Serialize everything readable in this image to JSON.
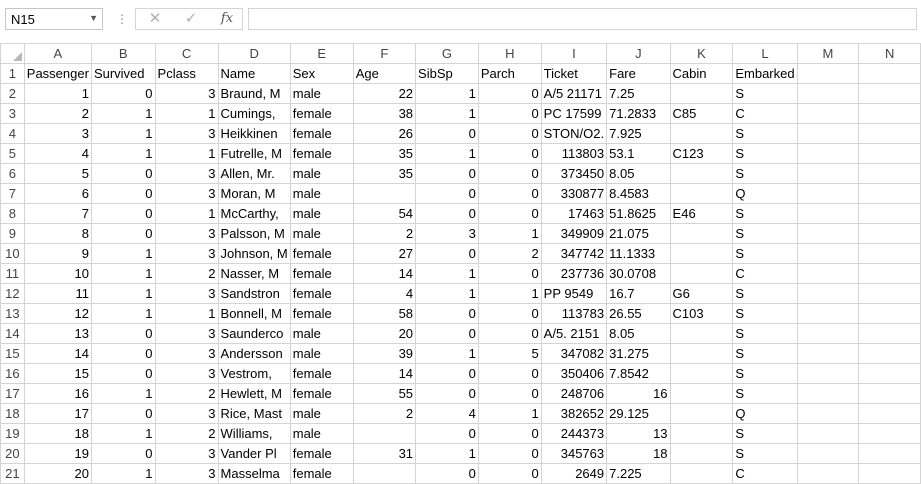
{
  "formula_bar": {
    "name_box": "N15",
    "cancel_icon": "✕",
    "enter_icon": "✓",
    "fx_label": "fx",
    "formula": ""
  },
  "columns": [
    "A",
    "B",
    "C",
    "D",
    "E",
    "F",
    "G",
    "H",
    "I",
    "J",
    "K",
    "L",
    "M",
    "N"
  ],
  "rows": [
    {
      "n": "1",
      "cells": [
        [
          "Passenger",
          "t"
        ],
        [
          "Survived",
          "t"
        ],
        [
          "Pclass",
          "t"
        ],
        [
          "Name",
          "t"
        ],
        [
          "Sex",
          "t"
        ],
        [
          "Age",
          "t"
        ],
        [
          "SibSp",
          "t"
        ],
        [
          "Parch",
          "t"
        ],
        [
          "Ticket",
          "t"
        ],
        [
          "Fare",
          "t"
        ],
        [
          "Cabin",
          "t"
        ],
        [
          "Embarked",
          "t"
        ],
        [
          "",
          ""
        ],
        [
          "",
          ""
        ]
      ]
    },
    {
      "n": "2",
      "cells": [
        [
          "1",
          "n"
        ],
        [
          "0",
          "n"
        ],
        [
          "3",
          "n"
        ],
        [
          "Braund, M",
          "t"
        ],
        [
          "male",
          "t"
        ],
        [
          "22",
          "n"
        ],
        [
          "1",
          "n"
        ],
        [
          "0",
          "n"
        ],
        [
          "A/5 21171",
          "t"
        ],
        [
          "7.25",
          "t"
        ],
        [
          "",
          ""
        ],
        [
          "S",
          "t"
        ],
        [
          "",
          ""
        ],
        [
          "",
          ""
        ]
      ]
    },
    {
      "n": "3",
      "cells": [
        [
          "2",
          "n"
        ],
        [
          "1",
          "n"
        ],
        [
          "1",
          "n"
        ],
        [
          "Cumings,",
          "t"
        ],
        [
          "female",
          "t"
        ],
        [
          "38",
          "n"
        ],
        [
          "1",
          "n"
        ],
        [
          "0",
          "n"
        ],
        [
          "PC 17599",
          "t"
        ],
        [
          "71.2833",
          "t"
        ],
        [
          "C85",
          "t"
        ],
        [
          "C",
          "t"
        ],
        [
          "",
          ""
        ],
        [
          "",
          ""
        ]
      ]
    },
    {
      "n": "4",
      "cells": [
        [
          "3",
          "n"
        ],
        [
          "1",
          "n"
        ],
        [
          "3",
          "n"
        ],
        [
          "Heikkinen",
          "t"
        ],
        [
          "female",
          "t"
        ],
        [
          "26",
          "n"
        ],
        [
          "0",
          "n"
        ],
        [
          "0",
          "n"
        ],
        [
          "STON/O2.",
          "t"
        ],
        [
          "7.925",
          "t"
        ],
        [
          "",
          ""
        ],
        [
          "S",
          "t"
        ],
        [
          "",
          ""
        ],
        [
          "",
          ""
        ]
      ]
    },
    {
      "n": "5",
      "cells": [
        [
          "4",
          "n"
        ],
        [
          "1",
          "n"
        ],
        [
          "1",
          "n"
        ],
        [
          "Futrelle, M",
          "t"
        ],
        [
          "female",
          "t"
        ],
        [
          "35",
          "n"
        ],
        [
          "1",
          "n"
        ],
        [
          "0",
          "n"
        ],
        [
          "113803",
          "n"
        ],
        [
          "53.1",
          "t"
        ],
        [
          "C123",
          "t"
        ],
        [
          "S",
          "t"
        ],
        [
          "",
          ""
        ],
        [
          "",
          ""
        ]
      ]
    },
    {
      "n": "6",
      "cells": [
        [
          "5",
          "n"
        ],
        [
          "0",
          "n"
        ],
        [
          "3",
          "n"
        ],
        [
          "Allen, Mr.",
          "t"
        ],
        [
          "male",
          "t"
        ],
        [
          "35",
          "n"
        ],
        [
          "0",
          "n"
        ],
        [
          "0",
          "n"
        ],
        [
          "373450",
          "n"
        ],
        [
          "8.05",
          "t"
        ],
        [
          "",
          ""
        ],
        [
          "S",
          "t"
        ],
        [
          "",
          ""
        ],
        [
          "",
          ""
        ]
      ]
    },
    {
      "n": "7",
      "cells": [
        [
          "6",
          "n"
        ],
        [
          "0",
          "n"
        ],
        [
          "3",
          "n"
        ],
        [
          "Moran, M",
          "t"
        ],
        [
          "male",
          "t"
        ],
        [
          "",
          ""
        ],
        [
          "0",
          "n"
        ],
        [
          "0",
          "n"
        ],
        [
          "330877",
          "n"
        ],
        [
          "8.4583",
          "t"
        ],
        [
          "",
          ""
        ],
        [
          "Q",
          "t"
        ],
        [
          "",
          ""
        ],
        [
          "",
          ""
        ]
      ]
    },
    {
      "n": "8",
      "cells": [
        [
          "7",
          "n"
        ],
        [
          "0",
          "n"
        ],
        [
          "1",
          "n"
        ],
        [
          "McCarthy,",
          "t"
        ],
        [
          "male",
          "t"
        ],
        [
          "54",
          "n"
        ],
        [
          "0",
          "n"
        ],
        [
          "0",
          "n"
        ],
        [
          "17463",
          "n"
        ],
        [
          "51.8625",
          "t"
        ],
        [
          "E46",
          "t"
        ],
        [
          "S",
          "t"
        ],
        [
          "",
          ""
        ],
        [
          "",
          ""
        ]
      ]
    },
    {
      "n": "9",
      "cells": [
        [
          "8",
          "n"
        ],
        [
          "0",
          "n"
        ],
        [
          "3",
          "n"
        ],
        [
          "Palsson, M",
          "t"
        ],
        [
          "male",
          "t"
        ],
        [
          "2",
          "n"
        ],
        [
          "3",
          "n"
        ],
        [
          "1",
          "n"
        ],
        [
          "349909",
          "n"
        ],
        [
          "21.075",
          "t"
        ],
        [
          "",
          ""
        ],
        [
          "S",
          "t"
        ],
        [
          "",
          ""
        ],
        [
          "",
          ""
        ]
      ]
    },
    {
      "n": "10",
      "cells": [
        [
          "9",
          "n"
        ],
        [
          "1",
          "n"
        ],
        [
          "3",
          "n"
        ],
        [
          "Johnson, M",
          "t"
        ],
        [
          "female",
          "t"
        ],
        [
          "27",
          "n"
        ],
        [
          "0",
          "n"
        ],
        [
          "2",
          "n"
        ],
        [
          "347742",
          "n"
        ],
        [
          "11.1333",
          "t"
        ],
        [
          "",
          ""
        ],
        [
          "S",
          "t"
        ],
        [
          "",
          ""
        ],
        [
          "",
          ""
        ]
      ]
    },
    {
      "n": "11",
      "cells": [
        [
          "10",
          "n"
        ],
        [
          "1",
          "n"
        ],
        [
          "2",
          "n"
        ],
        [
          "Nasser, M",
          "t"
        ],
        [
          "female",
          "t"
        ],
        [
          "14",
          "n"
        ],
        [
          "1",
          "n"
        ],
        [
          "0",
          "n"
        ],
        [
          "237736",
          "n"
        ],
        [
          "30.0708",
          "t"
        ],
        [
          "",
          ""
        ],
        [
          "C",
          "t"
        ],
        [
          "",
          ""
        ],
        [
          "",
          ""
        ]
      ]
    },
    {
      "n": "12",
      "cells": [
        [
          "11",
          "n"
        ],
        [
          "1",
          "n"
        ],
        [
          "3",
          "n"
        ],
        [
          "Sandstron",
          "t"
        ],
        [
          "female",
          "t"
        ],
        [
          "4",
          "n"
        ],
        [
          "1",
          "n"
        ],
        [
          "1",
          "n"
        ],
        [
          "PP 9549",
          "t"
        ],
        [
          "16.7",
          "t"
        ],
        [
          "G6",
          "t"
        ],
        [
          "S",
          "t"
        ],
        [
          "",
          ""
        ],
        [
          "",
          ""
        ]
      ]
    },
    {
      "n": "13",
      "cells": [
        [
          "12",
          "n"
        ],
        [
          "1",
          "n"
        ],
        [
          "1",
          "n"
        ],
        [
          "Bonnell, M",
          "t"
        ],
        [
          "female",
          "t"
        ],
        [
          "58",
          "n"
        ],
        [
          "0",
          "n"
        ],
        [
          "0",
          "n"
        ],
        [
          "113783",
          "n"
        ],
        [
          "26.55",
          "t"
        ],
        [
          "C103",
          "t"
        ],
        [
          "S",
          "t"
        ],
        [
          "",
          ""
        ],
        [
          "",
          ""
        ]
      ]
    },
    {
      "n": "14",
      "cells": [
        [
          "13",
          "n"
        ],
        [
          "0",
          "n"
        ],
        [
          "3",
          "n"
        ],
        [
          "Saunderco",
          "t"
        ],
        [
          "male",
          "t"
        ],
        [
          "20",
          "n"
        ],
        [
          "0",
          "n"
        ],
        [
          "0",
          "n"
        ],
        [
          "A/5. 2151",
          "t"
        ],
        [
          "8.05",
          "t"
        ],
        [
          "",
          ""
        ],
        [
          "S",
          "t"
        ],
        [
          "",
          ""
        ],
        [
          "",
          ""
        ]
      ]
    },
    {
      "n": "15",
      "cells": [
        [
          "14",
          "n"
        ],
        [
          "0",
          "n"
        ],
        [
          "3",
          "n"
        ],
        [
          "Andersson",
          "t"
        ],
        [
          "male",
          "t"
        ],
        [
          "39",
          "n"
        ],
        [
          "1",
          "n"
        ],
        [
          "5",
          "n"
        ],
        [
          "347082",
          "n"
        ],
        [
          "31.275",
          "t"
        ],
        [
          "",
          ""
        ],
        [
          "S",
          "t"
        ],
        [
          "",
          ""
        ],
        [
          "",
          ""
        ]
      ]
    },
    {
      "n": "16",
      "cells": [
        [
          "15",
          "n"
        ],
        [
          "0",
          "n"
        ],
        [
          "3",
          "n"
        ],
        [
          "Vestrom,",
          "t"
        ],
        [
          "female",
          "t"
        ],
        [
          "14",
          "n"
        ],
        [
          "0",
          "n"
        ],
        [
          "0",
          "n"
        ],
        [
          "350406",
          "n"
        ],
        [
          "7.8542",
          "t"
        ],
        [
          "",
          ""
        ],
        [
          "S",
          "t"
        ],
        [
          "",
          ""
        ],
        [
          "",
          ""
        ]
      ]
    },
    {
      "n": "17",
      "cells": [
        [
          "16",
          "n"
        ],
        [
          "1",
          "n"
        ],
        [
          "2",
          "n"
        ],
        [
          "Hewlett, M",
          "t"
        ],
        [
          "female",
          "t"
        ],
        [
          "55",
          "n"
        ],
        [
          "0",
          "n"
        ],
        [
          "0",
          "n"
        ],
        [
          "248706",
          "n"
        ],
        [
          "16",
          "n"
        ],
        [
          "",
          ""
        ],
        [
          "S",
          "t"
        ],
        [
          "",
          ""
        ],
        [
          "",
          ""
        ]
      ]
    },
    {
      "n": "18",
      "cells": [
        [
          "17",
          "n"
        ],
        [
          "0",
          "n"
        ],
        [
          "3",
          "n"
        ],
        [
          "Rice, Mast",
          "t"
        ],
        [
          "male",
          "t"
        ],
        [
          "2",
          "n"
        ],
        [
          "4",
          "n"
        ],
        [
          "1",
          "n"
        ],
        [
          "382652",
          "n"
        ],
        [
          "29.125",
          "t"
        ],
        [
          "",
          ""
        ],
        [
          "Q",
          "t"
        ],
        [
          "",
          ""
        ],
        [
          "",
          ""
        ]
      ]
    },
    {
      "n": "19",
      "cells": [
        [
          "18",
          "n"
        ],
        [
          "1",
          "n"
        ],
        [
          "2",
          "n"
        ],
        [
          "Williams,",
          "t"
        ],
        [
          "male",
          "t"
        ],
        [
          "",
          ""
        ],
        [
          "0",
          "n"
        ],
        [
          "0",
          "n"
        ],
        [
          "244373",
          "n"
        ],
        [
          "13",
          "n"
        ],
        [
          "",
          ""
        ],
        [
          "S",
          "t"
        ],
        [
          "",
          ""
        ],
        [
          "",
          ""
        ]
      ]
    },
    {
      "n": "20",
      "cells": [
        [
          "19",
          "n"
        ],
        [
          "0",
          "n"
        ],
        [
          "3",
          "n"
        ],
        [
          "Vander Pl",
          "t"
        ],
        [
          "female",
          "t"
        ],
        [
          "31",
          "n"
        ],
        [
          "1",
          "n"
        ],
        [
          "0",
          "n"
        ],
        [
          "345763",
          "n"
        ],
        [
          "18",
          "n"
        ],
        [
          "",
          ""
        ],
        [
          "S",
          "t"
        ],
        [
          "",
          ""
        ],
        [
          "",
          ""
        ]
      ]
    },
    {
      "n": "21",
      "cells": [
        [
          "20",
          "n"
        ],
        [
          "1",
          "n"
        ],
        [
          "3",
          "n"
        ],
        [
          "Masselma",
          "t"
        ],
        [
          "female",
          "t"
        ],
        [
          "",
          ""
        ],
        [
          "0",
          "n"
        ],
        [
          "0",
          "n"
        ],
        [
          "2649",
          "n"
        ],
        [
          "7.225",
          "t"
        ],
        [
          "",
          ""
        ],
        [
          "C",
          "t"
        ],
        [
          "",
          ""
        ],
        [
          "",
          ""
        ]
      ]
    }
  ]
}
